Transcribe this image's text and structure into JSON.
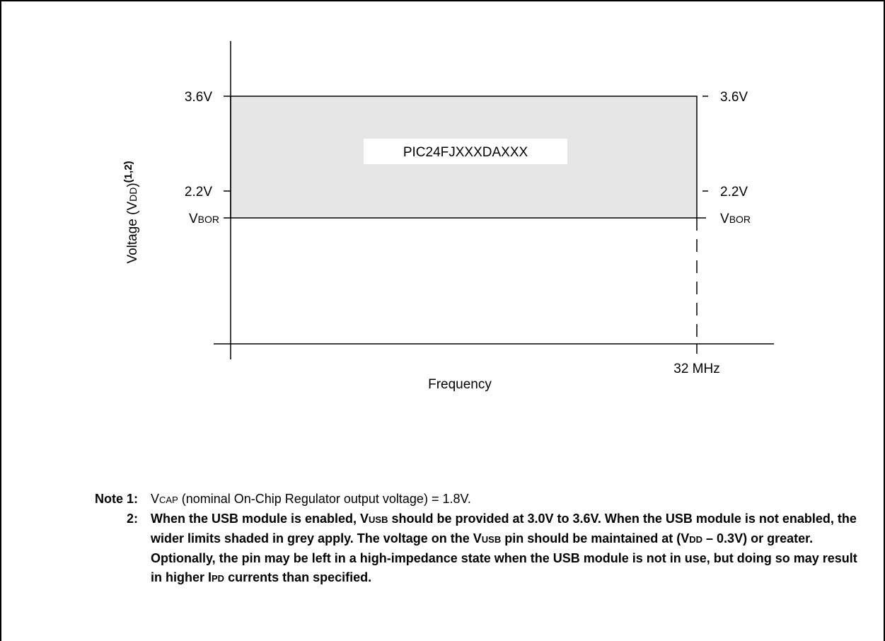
{
  "diagram": {
    "chip_label": "PIC24FJXXXDAXXX",
    "y_axis_label": {
      "text": "Voltage (V",
      "sub": "DD",
      "close": ")",
      "sup": "(1,2)"
    },
    "x_axis_label": "Frequency",
    "left_ticks": {
      "v_max": "3.6V",
      "v_mid": "2.2V",
      "vbor_main": "V",
      "vbor_sub": "BOR"
    },
    "right_ticks": {
      "v_max": "3.6V",
      "v_mid": "2.2V",
      "vbor_main": "V",
      "vbor_sub": "BOR"
    },
    "freq_tick": "32 MHz"
  },
  "notes": {
    "note1": {
      "lead": "Note 1:",
      "v_main": "V",
      "v_sub": "CAP",
      "rest": " (nominal On-Chip Regulator output voltage) =  1.8V."
    },
    "note2": {
      "lead": "2:",
      "p1": "When the USB module is enabled, V",
      "usb1": "USB",
      "p2": " should be provided at 3.0V to 3.6V. When the USB module is not enabled, the wider limits shaded in grey apply. The voltage on the V",
      "usb2": "USB",
      "p3": " pin should be maintained at (V",
      "dd": "DD",
      "p4": " – 0.3V) or greater. Optionally, the pin may be left in a high-impedance state when the USB module is not in use, but doing so may result in higher I",
      "pd": "PD",
      "p5": " currents than specified."
    }
  },
  "colors": {
    "shade": "#e6e6e6",
    "line": "#000000"
  }
}
